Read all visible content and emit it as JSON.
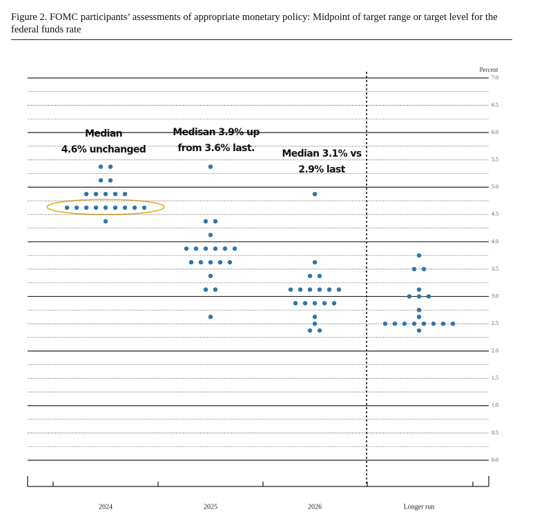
{
  "chart_data": {
    "type": "dot",
    "title": "Figure 2. FOMC participants’ assessments of appropriate monetary policy: Midpoint of target range or target level for the federal funds rate",
    "y_axis_label": "Percent",
    "categories": [
      "2024",
      "2025",
      "2026",
      "Longer run"
    ],
    "values": [
      [
        5.375,
        5.375,
        5.125,
        5.125,
        4.875,
        4.875,
        4.875,
        4.875,
        4.875,
        4.625,
        4.625,
        4.625,
        4.625,
        4.625,
        4.625,
        4.625,
        4.625,
        4.625,
        4.375
      ],
      [
        5.375,
        4.375,
        4.375,
        4.125,
        3.875,
        3.875,
        3.875,
        3.875,
        3.875,
        3.875,
        3.625,
        3.625,
        3.625,
        3.625,
        3.625,
        3.375,
        3.125,
        3.125,
        2.625
      ],
      [
        4.875,
        3.625,
        3.375,
        3.375,
        3.125,
        3.125,
        3.125,
        3.125,
        3.125,
        3.125,
        2.875,
        2.875,
        2.875,
        2.875,
        2.875,
        2.625,
        2.5,
        2.375,
        2.375
      ],
      [
        3.75,
        3.5,
        3.5,
        3.125,
        3.0,
        3.0,
        3.0,
        2.75,
        2.625,
        2.5,
        2.5,
        2.5,
        2.5,
        2.5,
        2.5,
        2.5,
        2.5,
        2.375
      ]
    ],
    "color": "#2f76a6",
    "ylim": [
      0,
      7
    ],
    "yticks": [
      {
        "value": 0,
        "label": "0.0"
      },
      0.5,
      {
        "value": 1,
        "label": "1.0"
      },
      1.5,
      {
        "value": 2,
        "label": "2.0"
      },
      2.5,
      {
        "value": 3,
        "label": "3.0"
      },
      3.5,
      {
        "value": 4,
        "label": "4.0"
      },
      4.5,
      {
        "value": 5,
        "label": "5.0"
      },
      5.5,
      {
        "value": 6,
        "label": "6.0"
      },
      6.5,
      {
        "value": 7,
        "label": "7.0"
      }
    ],
    "minor_gridlines": [
      0.25,
      0.75,
      1.25,
      1.75,
      2.25,
      2.75,
      3.25,
      3.75,
      4.25,
      4.75,
      5.25,
      5.75,
      6.25,
      6.75
    ],
    "grid": true,
    "annotations": [
      [
        "Median",
        "4.6% unchanged"
      ],
      [
        "Medisan 3.9% up",
        "from 3.6% last."
      ],
      [
        "Median 3.1% vs",
        "2.9% last"
      ]
    ]
  }
}
